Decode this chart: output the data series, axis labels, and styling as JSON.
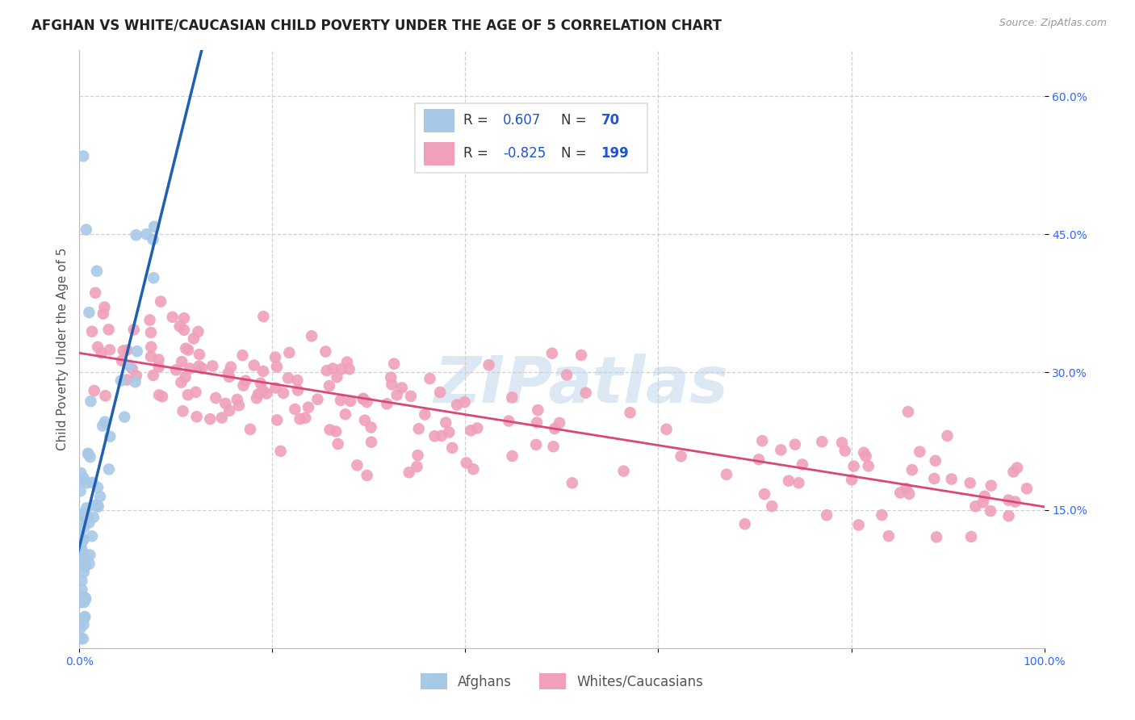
{
  "title": "AFGHAN VS WHITE/CAUCASIAN CHILD POVERTY UNDER THE AGE OF 5 CORRELATION CHART",
  "source": "Source: ZipAtlas.com",
  "ylabel": "Child Poverty Under the Age of 5",
  "xlim": [
    0.0,
    1.0
  ],
  "ylim": [
    0.0,
    0.65
  ],
  "yticks": [
    0.15,
    0.3,
    0.45,
    0.6
  ],
  "ytick_labels": [
    "15.0%",
    "30.0%",
    "45.0%",
    "60.0%"
  ],
  "xtick_labels": [
    "0.0%",
    "",
    "",
    "",
    "",
    "100.0%"
  ],
  "legend_r_afghan": "0.607",
  "legend_n_afghan": "70",
  "legend_r_white": "-0.825",
  "legend_n_white": "199",
  "afghan_color": "#a8c8e8",
  "afghan_line_color": "#2060b0",
  "white_color": "#f0a0b8",
  "white_line_color": "#d84878",
  "watermark": "ZIPatlas",
  "watermark_color": "#dce8f4",
  "background_color": "#ffffff",
  "grid_color": "#cccccc",
  "title_fontsize": 12,
  "axis_label_fontsize": 11,
  "tick_fontsize": 10,
  "legend_r_color": "#2255cc",
  "legend_label_color": "#333333",
  "tick_color": "#3366ff"
}
